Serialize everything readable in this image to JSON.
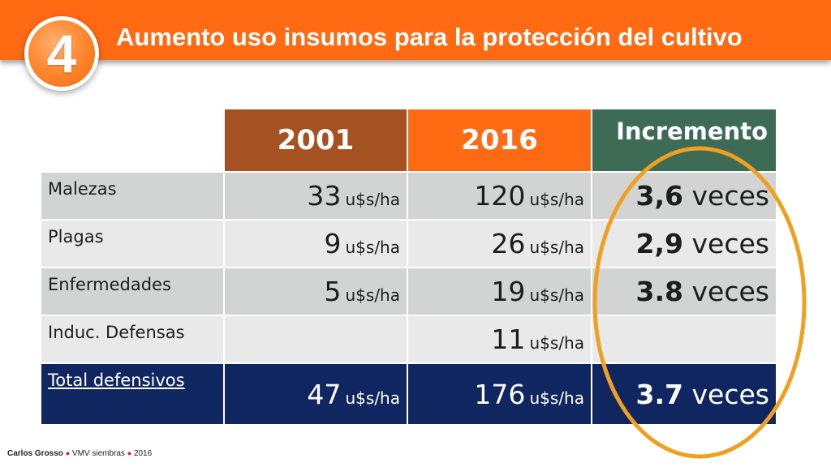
{
  "badge_number": "4",
  "title": "Aumento uso insumos para la protección del cultivo",
  "table": {
    "headers": [
      "",
      "2001",
      "2016",
      "Incremento"
    ],
    "rows": [
      {
        "label": "Malezas",
        "v2001": "33",
        "u2001": "u$s/ha",
        "v2016": "120",
        "u2016": "u$s/ha",
        "inc_num": "3,6",
        "inc_word": "veces"
      },
      {
        "label": "Plagas",
        "v2001": "9",
        "u2001": "u$s/ha",
        "v2016": "26",
        "u2016": "u$s/ha",
        "inc_num": "2,9",
        "inc_word": "veces"
      },
      {
        "label": "Enfermedades",
        "v2001": "5",
        "u2001": "u$s/ha",
        "v2016": "19",
        "u2016": "u$s/ha",
        "inc_num": "3.8",
        "inc_word": "veces"
      },
      {
        "label": "Induc. Defensas",
        "v2016": "11",
        "u2016": "u$s/ha"
      },
      {
        "label": "Total defensivos",
        "v2001": "47",
        "u2001": "u$s/ha",
        "v2016": "176",
        "u2016": "u$s/ha",
        "inc_num": "3.7",
        "inc_word": "veces"
      }
    ]
  },
  "footer": {
    "author": "Carlos Grosso",
    "event": "VMV siembras",
    "year": "2016"
  },
  "colors": {
    "header": "#ff6a13",
    "col_2001": "#a65122",
    "col_2016": "#ff6a13",
    "col_inc": "#3e6b56",
    "total_row": "#0f2660",
    "highlight": "#f0a020"
  }
}
